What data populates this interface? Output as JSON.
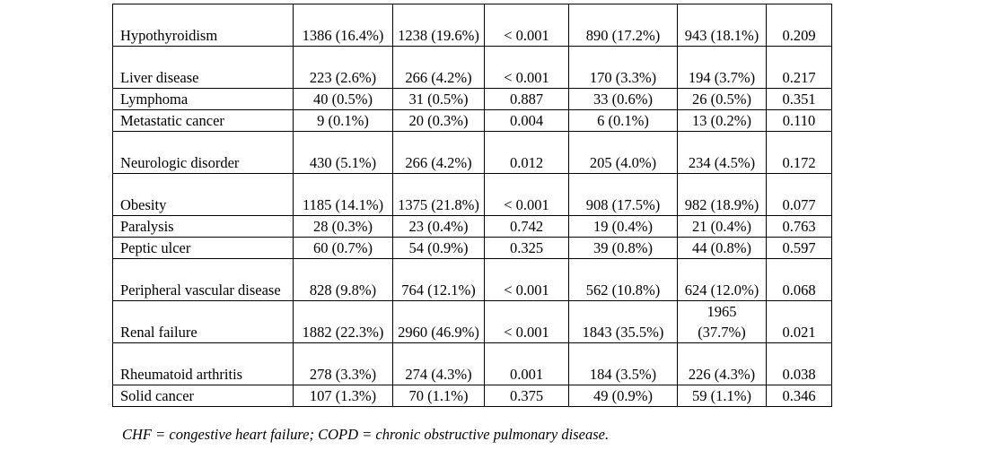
{
  "rows": [
    {
      "label": "Hypothyroidism",
      "c1": "1386 (16.4%)",
      "c2": "1238 (19.6%)",
      "p1": "< 0.001",
      "c3": "890 (17.2%)",
      "c4": "943 (18.1%)",
      "p2": "0.209"
    },
    {
      "label": "Liver disease",
      "c1": "223 (2.6%)",
      "c2": "266 (4.2%)",
      "p1": "< 0.001",
      "c3": "170 (3.3%)",
      "c4": "194 (3.7%)",
      "p2": "0.217"
    },
    {
      "label": "Lymphoma",
      "c1": "40 (0.5%)",
      "c2": "31 (0.5%)",
      "p1": "0.887",
      "c3": "33 (0.6%)",
      "c4": "26 (0.5%)",
      "p2": "0.351"
    },
    {
      "label": "Metastatic cancer",
      "c1": "9 (0.1%)",
      "c2": "20 (0.3%)",
      "p1": "0.004",
      "c3": "6 (0.1%)",
      "c4": "13 (0.2%)",
      "p2": "0.110"
    },
    {
      "label": "Neurologic disorder",
      "c1": "430 (5.1%)",
      "c2": "266 (4.2%)",
      "p1": "0.012",
      "c3": "205 (4.0%)",
      "c4": "234 (4.5%)",
      "p2": "0.172"
    },
    {
      "label": "Obesity",
      "c1": "1185 (14.1%)",
      "c2": "1375 (21.8%)",
      "p1": "< 0.001",
      "c3": "908 (17.5%)",
      "c4": "982 (18.9%)",
      "p2": "0.077"
    },
    {
      "label": "Paralysis",
      "c1": "28 (0.3%)",
      "c2": "23 (0.4%)",
      "p1": "0.742",
      "c3": "19 (0.4%)",
      "c4": "21 (0.4%)",
      "p2": "0.763"
    },
    {
      "label": "Peptic ulcer",
      "c1": "60 (0.7%)",
      "c2": "54 (0.9%)",
      "p1": "0.325",
      "c3": "39 (0.8%)",
      "c4": "44 (0.8%)",
      "p2": "0.597"
    },
    {
      "label": "Peripheral vascular disease",
      "c1": "828 (9.8%)",
      "c2": "764 (12.1%)",
      "p1": "< 0.001",
      "c3": "562 (10.8%)",
      "c4": "624 (12.0%)",
      "p2": "0.068"
    },
    {
      "label": "Renal failure",
      "c1": "1882 (22.3%)",
      "c2": "2960 (46.9%)",
      "p1": "< 0.001",
      "c3": "1843 (35.5%)",
      "c4": "1965 (37.7%)",
      "p2": "0.021"
    },
    {
      "label": "Rheumatoid arthritis",
      "c1": "278 (3.3%)",
      "c2": "274 (4.3%)",
      "p1": "0.001",
      "c3": "184 (3.5%)",
      "c4": "226 (4.3%)",
      "p2": "0.038"
    },
    {
      "label": "Solid cancer",
      "c1": "107 (1.3%)",
      "c2": "70 (1.1%)",
      "p1": "0.375",
      "c3": "49 (0.9%)",
      "c4": "59 (1.1%)",
      "p2": "0.346"
    }
  ],
  "caption": "CHF = congestive heart failure; COPD = chronic obstructive pulmonary disease."
}
